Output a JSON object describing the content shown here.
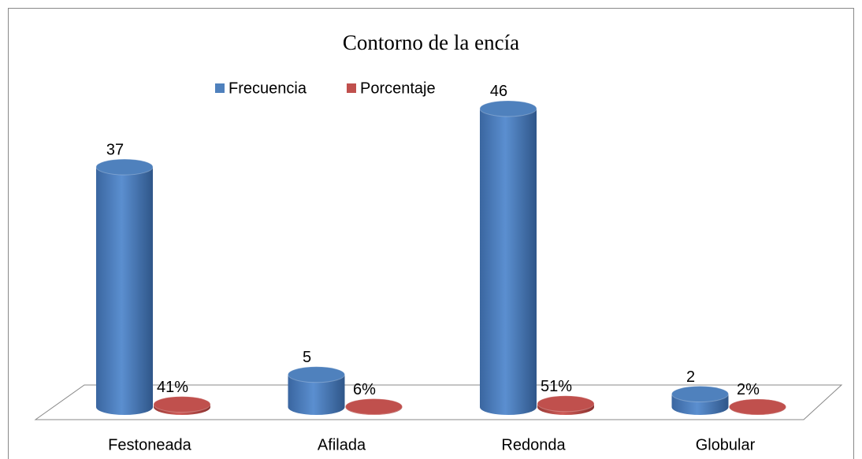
{
  "chart_data": {
    "type": "bar3d",
    "title": "Contorno de la encía",
    "categories": [
      "Festoneada",
      "Afilada",
      "Redonda",
      "Globular"
    ],
    "series": [
      {
        "name": "Frecuencia",
        "color": "#4f81bd",
        "values": [
          37,
          5,
          46,
          2
        ]
      },
      {
        "name": "Porcentaje",
        "color": "#c0504d",
        "values": [
          0.41,
          0.06,
          0.51,
          0.02
        ],
        "value_labels": [
          "41%",
          "6%",
          "51%",
          "2%"
        ]
      }
    ],
    "ylim": [
      0,
      50
    ],
    "legend": "top"
  }
}
